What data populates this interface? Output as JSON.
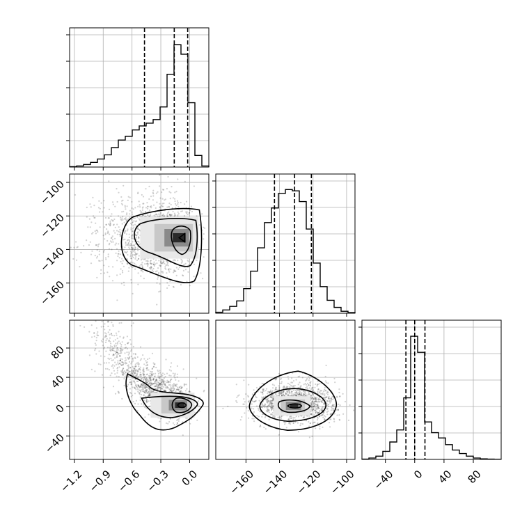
{
  "chart_data": {
    "type": "corner",
    "title": "",
    "grid": true,
    "panels": [
      {
        "id": "hist-p1",
        "type": "histogram",
        "xlim": [
          -1.25,
          0.2
        ],
        "xticks": [
          -1.2,
          -0.9,
          -0.6,
          -0.3,
          0.0
        ],
        "bin_edges": [
          -1.25,
          -1.1775,
          -1.105,
          -1.0325,
          -0.96,
          -0.8875,
          -0.815,
          -0.7425,
          -0.67,
          -0.5975,
          -0.525,
          -0.4525,
          -0.38,
          -0.3075,
          -0.235,
          -0.1625,
          -0.09,
          -0.0175,
          0.055,
          0.1275,
          0.2
        ],
        "counts": [
          0.2,
          0.5,
          1.2,
          2.2,
          3.8,
          5.8,
          9.2,
          12.8,
          14.6,
          17.6,
          19.5,
          20.8,
          22.5,
          28.5,
          44.0,
          58.0,
          53.5,
          30.5,
          5.5,
          0.5
        ],
        "count_max": 66,
        "quantiles": [
          -0.47,
          -0.16,
          -0.02
        ]
      },
      {
        "id": "hist-p2",
        "type": "histogram",
        "xlim": [
          -178,
          -95
        ],
        "xticks": [
          -160,
          -140,
          -120,
          -100
        ],
        "bin_edges": [
          -178,
          -173.85,
          -169.7,
          -165.55,
          -161.4,
          -157.25,
          -153.1,
          -148.95,
          -144.8,
          -140.65,
          -136.5,
          -132.35,
          -128.2,
          -124.05,
          -119.9,
          -115.75,
          -111.6,
          -107.45,
          -103.3,
          -99.15,
          -95
        ],
        "counts": [
          0.3,
          1.0,
          2.1,
          3.8,
          7.6,
          13.0,
          20.2,
          28.0,
          32.5,
          37.0,
          38.2,
          37.8,
          34.5,
          26.0,
          15.5,
          8.2,
          4.0,
          1.8,
          0.6,
          0.2
        ],
        "count_max": 43,
        "quantiles": [
          -143,
          -131,
          -121
        ]
      },
      {
        "id": "hist-p3",
        "type": "histogram",
        "xlim": [
          -72,
          118
        ],
        "xticks": [
          -40,
          0,
          40,
          80
        ],
        "bin_edges": [
          -72,
          -62.5,
          -53,
          -43.5,
          -34,
          -24.5,
          -15,
          -5.5,
          4,
          13.5,
          23,
          32.5,
          42,
          51.5,
          61,
          70.5,
          80,
          89.5,
          99,
          108.5,
          118
        ],
        "counts": [
          0.1,
          0.5,
          1.2,
          3.0,
          6.5,
          11.0,
          23.0,
          46.0,
          40.0,
          14.0,
          10.0,
          8.0,
          5.5,
          3.5,
          2.2,
          1.2,
          0.5,
          0.2,
          0.1,
          0.05
        ],
        "count_max": 52,
        "quantiles": [
          -12,
          0,
          14
        ]
      },
      {
        "id": "scatter-p1-p2",
        "type": "density2d",
        "xlim": [
          -1.25,
          0.2
        ],
        "ylim": [
          -178,
          -95
        ],
        "xticks": [
          -1.2,
          -0.9,
          -0.6,
          -0.3,
          0.0
        ],
        "yticks": [
          -100,
          -120,
          -140,
          -160
        ],
        "peak": [
          -0.08,
          -133
        ]
      },
      {
        "id": "scatter-p1-p3",
        "type": "density2d",
        "xlim": [
          -1.25,
          0.2
        ],
        "ylim": [
          -72,
          118
        ],
        "xticks": [
          -1.2,
          -0.9,
          -0.6,
          -0.3,
          0.0
        ],
        "yticks": [
          80,
          40,
          0,
          -40
        ],
        "peak": [
          -0.08,
          2
        ]
      },
      {
        "id": "scatter-p2-p3",
        "type": "density2d",
        "xlim": [
          -178,
          -95
        ],
        "ylim": [
          -72,
          118
        ],
        "xticks": [
          -160,
          -140,
          -120,
          -100
        ],
        "yticks": [],
        "peak": [
          -131,
          1
        ]
      }
    ]
  }
}
